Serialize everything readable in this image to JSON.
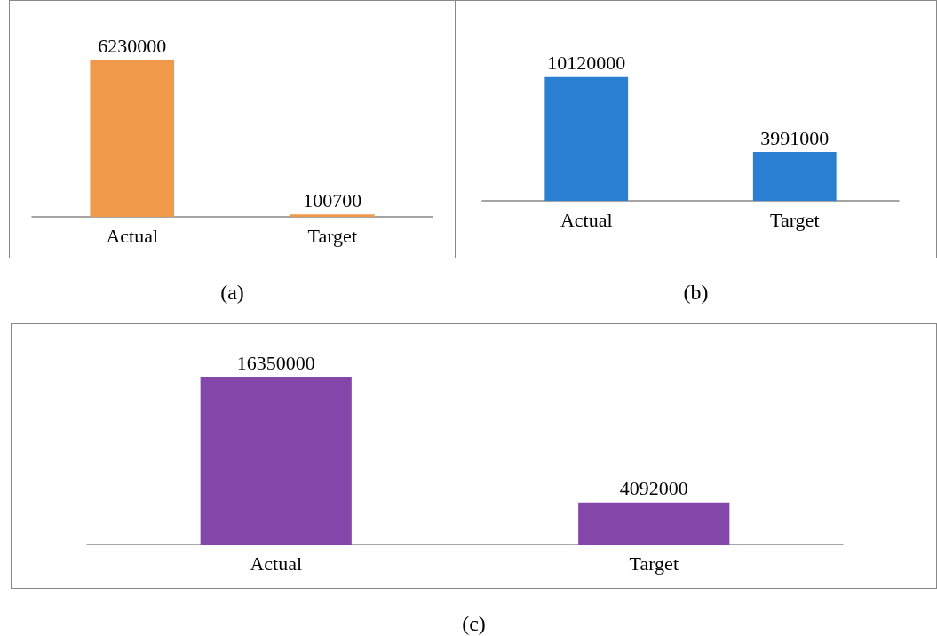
{
  "chart_data": [
    {
      "type": "bar",
      "categories": [
        "Actual",
        "Target"
      ],
      "values": [
        6230000,
        100700
      ],
      "color": "#f0994a",
      "data_labels": true,
      "annotations": [
        "(a)"
      ]
    },
    {
      "type": "bar",
      "categories": [
        "Actual",
        "Target"
      ],
      "values": [
        10120000,
        3991000
      ],
      "color": "#2a7fd0",
      "data_labels": true,
      "annotations": [
        "(b)"
      ]
    },
    {
      "type": "bar",
      "categories": [
        "Actual",
        "Target"
      ],
      "values": [
        16350000,
        4092000
      ],
      "color": "#8446a8",
      "data_labels": true,
      "annotations": [
        "(c)"
      ]
    }
  ]
}
